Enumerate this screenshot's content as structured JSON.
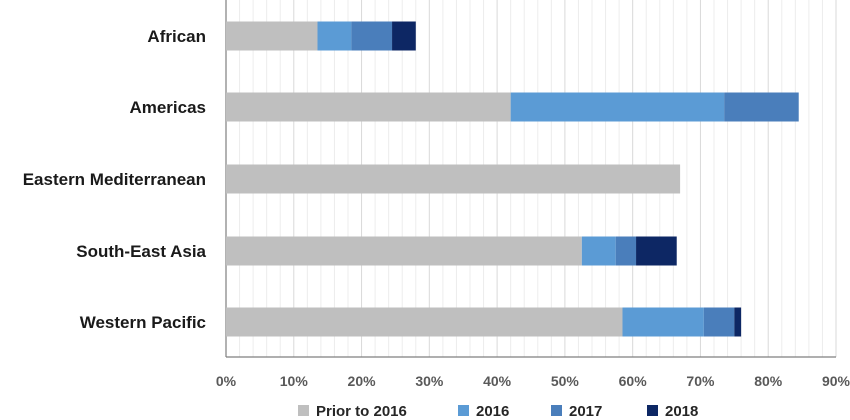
{
  "chart_data": {
    "type": "bar",
    "orientation": "horizontal",
    "stacked": true,
    "title": "",
    "xlabel": "",
    "ylabel": "",
    "categories": [
      "African",
      "Americas",
      "Eastern Mediterranean",
      "South-East Asia",
      "Western Pacific"
    ],
    "series": [
      {
        "name": "Prior to 2016",
        "color": "#bfbfbf",
        "values": [
          13.5,
          42.0,
          67.0,
          52.5,
          58.5
        ]
      },
      {
        "name": "2016",
        "color": "#5b9bd5",
        "values": [
          5.0,
          31.5,
          0.0,
          5.0,
          12.0
        ]
      },
      {
        "name": "2017",
        "color": "#4a7ebb",
        "values": [
          6.0,
          11.0,
          0.0,
          3.0,
          4.5
        ]
      },
      {
        "name": "2018",
        "color": "#0d2764",
        "values": [
          3.5,
          0.0,
          0.0,
          6.0,
          1.0
        ]
      }
    ],
    "xlim": [
      0,
      90
    ],
    "x_ticks": [
      "0%",
      "10%",
      "20%",
      "30%",
      "40%",
      "50%",
      "60%",
      "70%",
      "80%",
      "90%"
    ],
    "grid": true,
    "legend_position": "bottom"
  }
}
